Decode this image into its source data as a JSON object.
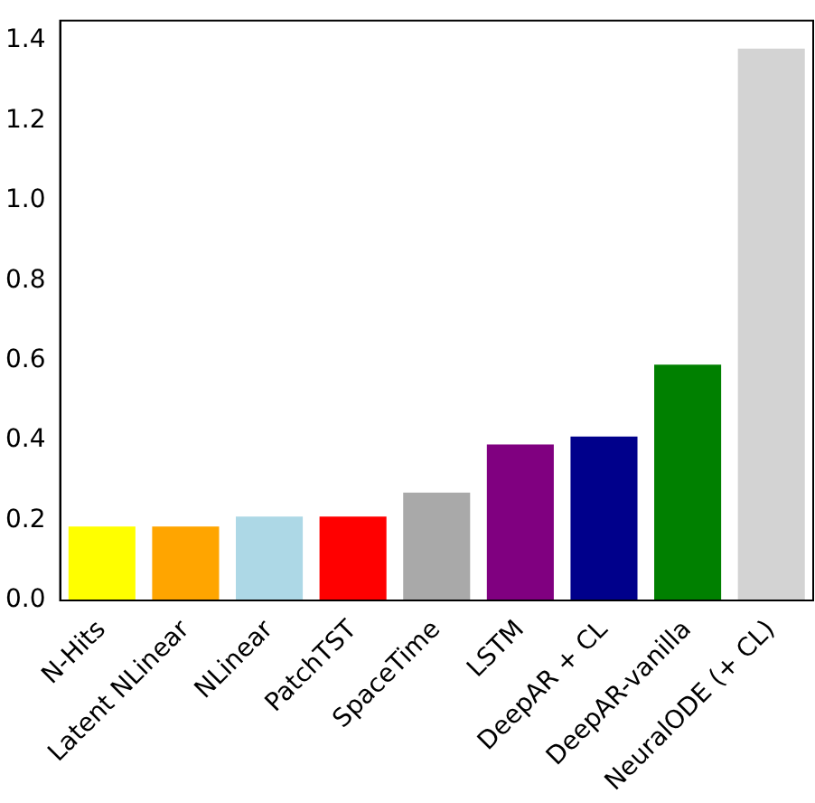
{
  "chart_data": {
    "type": "bar",
    "categories": [
      "N-Hits",
      "Latent NLinear",
      "NLinear",
      "PatchTST",
      "SpaceTime",
      "LSTM",
      "DeepAR + CL",
      "DeepAR-vanilla",
      "NeuralODE (+ CL)"
    ],
    "values": [
      0.185,
      0.185,
      0.21,
      0.21,
      0.27,
      0.39,
      0.41,
      0.59,
      1.38
    ],
    "colors": [
      "#ffff00",
      "#ffa500",
      "#add8e6",
      "#ff0000",
      "#a9a9a9",
      "#800080",
      "#00008b",
      "#008000",
      "#d3d3d3"
    ],
    "ylim": [
      0,
      1.45
    ],
    "yticks": [
      {
        "value": 0,
        "label": "0.0"
      },
      {
        "value": 0.2,
        "label": "0.2"
      },
      {
        "value": 0.4,
        "label": "0.4"
      },
      {
        "value": 0.6,
        "label": "0.6"
      },
      {
        "value": 0.8,
        "label": "0.8"
      },
      {
        "value": 1,
        "label": "1.0"
      },
      {
        "value": 1.2,
        "label": "1.2"
      },
      {
        "value": 1.4,
        "label": "1.4"
      }
    ],
    "grid": false,
    "legend": false
  }
}
